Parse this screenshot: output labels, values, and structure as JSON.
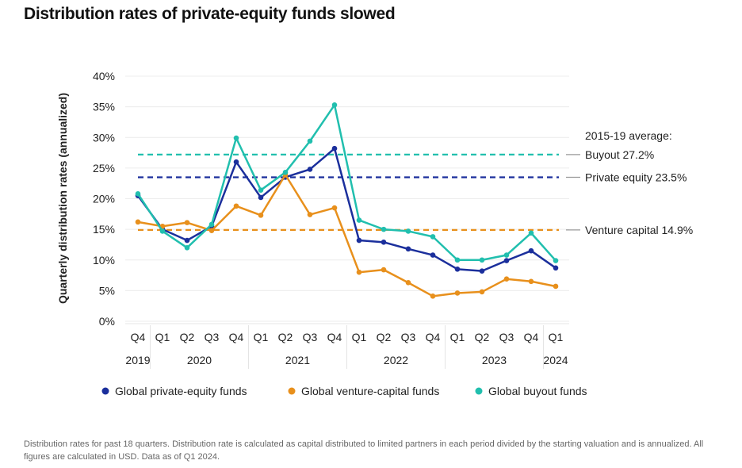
{
  "chart_data": {
    "type": "line",
    "title": "Distribution rates of private-equity funds slowed",
    "ylabel": "Quarterly distribution rates (annualized)",
    "xlabel": "",
    "ylim": [
      0,
      40
    ],
    "yticks": [
      "0%",
      "5%",
      "10%",
      "15%",
      "20%",
      "25%",
      "30%",
      "35%",
      "40%"
    ],
    "grid": true,
    "categories": [
      "Q4",
      "Q1",
      "Q2",
      "Q3",
      "Q4",
      "Q1",
      "Q2",
      "Q3",
      "Q4",
      "Q1",
      "Q2",
      "Q3",
      "Q4",
      "Q1",
      "Q2",
      "Q3",
      "Q4",
      "Q1"
    ],
    "year_groups": [
      {
        "label": "2019",
        "count": 1
      },
      {
        "label": "2020",
        "count": 4
      },
      {
        "label": "2021",
        "count": 4
      },
      {
        "label": "2022",
        "count": 4
      },
      {
        "label": "2023",
        "count": 4
      },
      {
        "label": "2024",
        "count": 1
      }
    ],
    "series": [
      {
        "name": "Global private-equity funds",
        "color": "#1b2f9c",
        "values": [
          20.5,
          15.0,
          13.2,
          15.5,
          26.0,
          20.2,
          23.5,
          24.8,
          28.2,
          13.2,
          12.9,
          11.8,
          10.8,
          8.5,
          8.2,
          9.9,
          11.5,
          8.7
        ]
      },
      {
        "name": "Global venture-capital funds",
        "color": "#e8901c",
        "values": [
          16.2,
          15.5,
          16.1,
          14.8,
          18.8,
          17.3,
          23.9,
          17.4,
          18.5,
          8.0,
          8.4,
          6.3,
          4.1,
          4.6,
          4.8,
          6.9,
          6.5,
          5.7
        ]
      },
      {
        "name": "Global buyout funds",
        "color": "#21bfae",
        "values": [
          20.8,
          14.7,
          12.0,
          15.8,
          29.9,
          21.4,
          24.3,
          29.4,
          35.3,
          16.5,
          15.0,
          14.7,
          13.8,
          10.0,
          10.0,
          10.8,
          14.4,
          9.9
        ]
      }
    ],
    "averages_title": "2015-19 average:",
    "averages": [
      {
        "label": "Buyout 27.2%",
        "value": 27.2,
        "color": "#21bfae"
      },
      {
        "label": "Private equity 23.5%",
        "value": 23.5,
        "color": "#1b2f9c"
      },
      {
        "label": "Venture capital 14.9%",
        "value": 14.9,
        "color": "#e8901c"
      }
    ],
    "legend_position": "bottom"
  },
  "note": "Distribution rates for past 18 quarters. Distribution rate is calculated as capital distributed to limited partners in each period divided by the starting valuation and is annualized. All figures are calculated in USD. Data as of Q1 2024."
}
